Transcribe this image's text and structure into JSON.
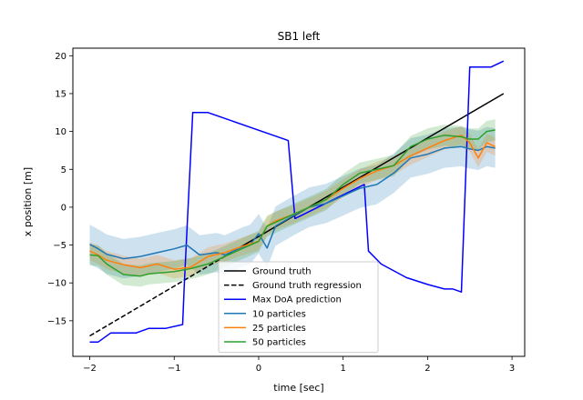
{
  "chart_data": {
    "type": "line",
    "title": "SB1 left",
    "xlabel": "time [sec]",
    "ylabel": "x position [m]",
    "xlim": [
      -2.2,
      3.15
    ],
    "ylim": [
      -19.7,
      21.0
    ],
    "xticks": [
      -2,
      -1,
      0,
      1,
      2,
      3
    ],
    "yticks": [
      -15,
      -10,
      -5,
      0,
      5,
      10,
      15,
      20
    ],
    "xtick_labels": [
      "−2",
      "−1",
      "0",
      "1",
      "2",
      "3"
    ],
    "ytick_labels": [
      "−15",
      "−10",
      "−5",
      "0",
      "5",
      "10",
      "15",
      "20"
    ],
    "grid": false,
    "legend_placement": "lower center",
    "series": [
      {
        "name": "Ground truth",
        "color": "#000000",
        "dash": "solid",
        "x": [
          -0.25,
          2.9
        ],
        "y": [
          -5.5,
          15.0
        ]
      },
      {
        "name": "Ground truth regression",
        "color": "#000000",
        "dash": "dashed",
        "x": [
          -2.0,
          -0.25
        ],
        "y": [
          -17.0,
          -5.5
        ]
      },
      {
        "name": "Max DoA prediction",
        "color": "#0000ff",
        "dash": "solid",
        "x": [
          -2.0,
          -1.9,
          -1.75,
          -1.6,
          -1.45,
          -1.3,
          -1.1,
          -0.9,
          -0.88,
          -0.78,
          -0.68,
          -0.6,
          0.35,
          0.43,
          1.25,
          1.3,
          1.45,
          1.75,
          2.0,
          2.2,
          2.3,
          2.4,
          2.5,
          2.75,
          2.9
        ],
        "y": [
          -17.8,
          -17.8,
          -16.6,
          -16.6,
          -16.6,
          -16.0,
          -16.0,
          -15.5,
          -10.0,
          12.5,
          12.5,
          12.5,
          8.8,
          -1.5,
          3.0,
          -5.8,
          -7.5,
          -9.3,
          -10.2,
          -10.8,
          -10.8,
          -11.2,
          18.5,
          18.5,
          19.3
        ]
      },
      {
        "name": "10 particles",
        "color": "#1f77b4",
        "dash": "solid",
        "band": 2.6,
        "x": [
          -2.0,
          -1.9,
          -1.8,
          -1.6,
          -1.4,
          -1.2,
          -1.0,
          -0.85,
          -0.7,
          -0.5,
          -0.4,
          -0.3,
          -0.2,
          -0.1,
          0.0,
          0.1,
          0.2,
          0.4,
          0.6,
          0.8,
          1.0,
          1.2,
          1.4,
          1.6,
          1.8,
          2.0,
          2.2,
          2.4,
          2.5,
          2.6,
          2.7,
          2.8
        ],
        "y": [
          -4.9,
          -5.5,
          -6.2,
          -6.8,
          -6.5,
          -6.0,
          -5.5,
          -5.0,
          -6.3,
          -6.0,
          -6.3,
          -5.8,
          -5.3,
          -4.9,
          -3.5,
          -5.4,
          -2.5,
          -1.2,
          0.0,
          0.5,
          1.5,
          2.5,
          3.0,
          4.5,
          6.5,
          7.0,
          7.8,
          8.0,
          7.7,
          7.5,
          8.0,
          7.8
        ]
      },
      {
        "name": "25 particles",
        "color": "#ff7f0e",
        "dash": "solid",
        "band": 1.2,
        "x": [
          -2.0,
          -1.9,
          -1.8,
          -1.6,
          -1.4,
          -1.2,
          -1.0,
          -0.8,
          -0.6,
          -0.4,
          -0.2,
          0.0,
          0.1,
          0.2,
          0.4,
          0.6,
          0.8,
          1.0,
          1.2,
          1.4,
          1.6,
          1.8,
          2.0,
          2.2,
          2.4,
          2.5,
          2.6,
          2.7,
          2.8
        ],
        "y": [
          -5.8,
          -6.3,
          -7.0,
          -7.6,
          -8.0,
          -7.5,
          -8.2,
          -7.9,
          -6.5,
          -6.0,
          -5.2,
          -4.5,
          -2.5,
          -1.8,
          -1.0,
          0.0,
          1.0,
          2.5,
          3.8,
          4.8,
          5.5,
          6.8,
          7.8,
          8.8,
          9.5,
          8.5,
          6.5,
          8.5,
          8.0
        ]
      },
      {
        "name": "50 particles",
        "color": "#2ca02c",
        "dash": "solid",
        "band": 1.4,
        "x": [
          -2.0,
          -1.9,
          -1.8,
          -1.6,
          -1.5,
          -1.4,
          -1.3,
          -1.2,
          -1.0,
          -0.8,
          -0.6,
          -0.4,
          -0.2,
          0.0,
          0.1,
          0.2,
          0.4,
          0.6,
          0.8,
          1.0,
          1.2,
          1.4,
          1.6,
          1.8,
          2.0,
          2.2,
          2.4,
          2.5,
          2.6,
          2.7,
          2.8
        ],
        "y": [
          -6.3,
          -6.4,
          -7.5,
          -8.9,
          -9.0,
          -9.1,
          -8.8,
          -8.7,
          -8.5,
          -8.1,
          -7.5,
          -6.5,
          -5.5,
          -4.5,
          -2.5,
          -2.0,
          -1.0,
          0.0,
          1.0,
          3.0,
          4.5,
          5.0,
          5.5,
          8.0,
          9.0,
          9.5,
          9.3,
          9.0,
          9.0,
          10.0,
          10.2
        ]
      }
    ]
  }
}
